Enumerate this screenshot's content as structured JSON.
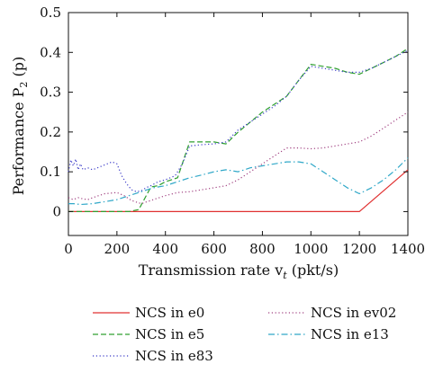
{
  "chart_data": {
    "type": "line",
    "title": "",
    "xlabel": "Transmission rate v",
    "xlabel_sub": "t",
    "xlabel_unit": " (pkt/s)",
    "ylabel": "Performance P",
    "ylabel_sub": "2",
    "ylabel_unit": " (p)",
    "xlim": [
      0,
      1400
    ],
    "ylim": [
      -0.06,
      0.5
    ],
    "xticks": [
      0,
      200,
      400,
      600,
      800,
      1000,
      1200,
      1400
    ],
    "yticks": [
      0,
      0.1,
      0.2,
      0.3,
      0.4,
      0.5
    ],
    "xtick_labels": [
      "0",
      "200",
      "400",
      "600",
      "800",
      "1000",
      "1200",
      "1400"
    ],
    "ytick_labels": [
      "0",
      "0.1",
      "0.2",
      "0.3",
      "0.4",
      "0.5"
    ],
    "grid": false,
    "legend_position": "below",
    "series": [
      {
        "name": "NCS in e0",
        "color": "#e03030",
        "dash": "solid",
        "x": [
          0,
          1200,
          1400
        ],
        "y": [
          0,
          0,
          0.105
        ]
      },
      {
        "name": "NCS in e5",
        "color": "#30a030",
        "dash": "dashed",
        "x": [
          0,
          250,
          265,
          290,
          340,
          370,
          400,
          450,
          500,
          550,
          600,
          650,
          700,
          750,
          800,
          850,
          900,
          950,
          1000,
          1050,
          1100,
          1150,
          1200,
          1250,
          1300,
          1350,
          1400
        ],
        "y": [
          0,
          0,
          0.002,
          0.005,
          0.062,
          0.065,
          0.075,
          0.085,
          0.175,
          0.175,
          0.175,
          0.17,
          0.2,
          0.225,
          0.25,
          0.27,
          0.29,
          0.33,
          0.37,
          0.365,
          0.36,
          0.35,
          0.345,
          0.36,
          0.375,
          0.39,
          0.41
        ]
      },
      {
        "name": "NCS in e83",
        "color": "#3a3ac8",
        "dash": "dotted",
        "x": [
          0,
          10,
          20,
          30,
          40,
          50,
          60,
          80,
          100,
          120,
          140,
          160,
          180,
          200,
          220,
          240,
          260,
          280,
          300,
          320,
          340,
          370,
          400,
          420,
          440,
          470,
          500,
          550,
          600,
          650,
          700,
          750,
          800,
          850,
          900,
          950,
          1000,
          1050,
          1100,
          1150,
          1200,
          1250,
          1300,
          1350,
          1400
        ],
        "y": [
          0.1,
          0.13,
          0.115,
          0.132,
          0.105,
          0.12,
          0.105,
          0.11,
          0.105,
          0.11,
          0.115,
          0.12,
          0.125,
          0.12,
          0.09,
          0.07,
          0.055,
          0.05,
          0.052,
          0.06,
          0.065,
          0.075,
          0.08,
          0.085,
          0.09,
          0.12,
          0.165,
          0.168,
          0.17,
          0.175,
          0.205,
          0.225,
          0.245,
          0.265,
          0.29,
          0.33,
          0.365,
          0.36,
          0.355,
          0.35,
          0.35,
          0.36,
          0.375,
          0.39,
          0.405
        ]
      },
      {
        "name": "NCS in ev02",
        "color": "#a04080",
        "dash": "dotted",
        "x": [
          0,
          20,
          40,
          60,
          80,
          100,
          150,
          200,
          230,
          260,
          300,
          350,
          400,
          450,
          500,
          550,
          600,
          650,
          700,
          750,
          800,
          850,
          900,
          950,
          1000,
          1050,
          1100,
          1150,
          1200,
          1250,
          1300,
          1350,
          1400
        ],
        "y": [
          0.035,
          0.03,
          0.035,
          0.032,
          0.03,
          0.035,
          0.045,
          0.048,
          0.04,
          0.028,
          0.02,
          0.03,
          0.04,
          0.048,
          0.05,
          0.055,
          0.06,
          0.065,
          0.08,
          0.1,
          0.12,
          0.14,
          0.16,
          0.16,
          0.158,
          0.16,
          0.165,
          0.17,
          0.175,
          0.19,
          0.21,
          0.23,
          0.25
        ]
      },
      {
        "name": "NCS in e13",
        "color": "#30a8c8",
        "dash": "dashdot",
        "x": [
          0,
          20,
          50,
          100,
          150,
          200,
          250,
          300,
          350,
          400,
          450,
          500,
          550,
          600,
          650,
          700,
          750,
          800,
          850,
          900,
          950,
          1000,
          1050,
          1100,
          1150,
          1200,
          1250,
          1300,
          1350,
          1400
        ],
        "y": [
          0.02,
          0.02,
          0.018,
          0.02,
          0.025,
          0.03,
          0.04,
          0.05,
          0.06,
          0.065,
          0.075,
          0.085,
          0.092,
          0.1,
          0.105,
          0.1,
          0.11,
          0.115,
          0.12,
          0.125,
          0.125,
          0.12,
          0.1,
          0.08,
          0.06,
          0.045,
          0.06,
          0.08,
          0.105,
          0.135
        ]
      }
    ]
  }
}
